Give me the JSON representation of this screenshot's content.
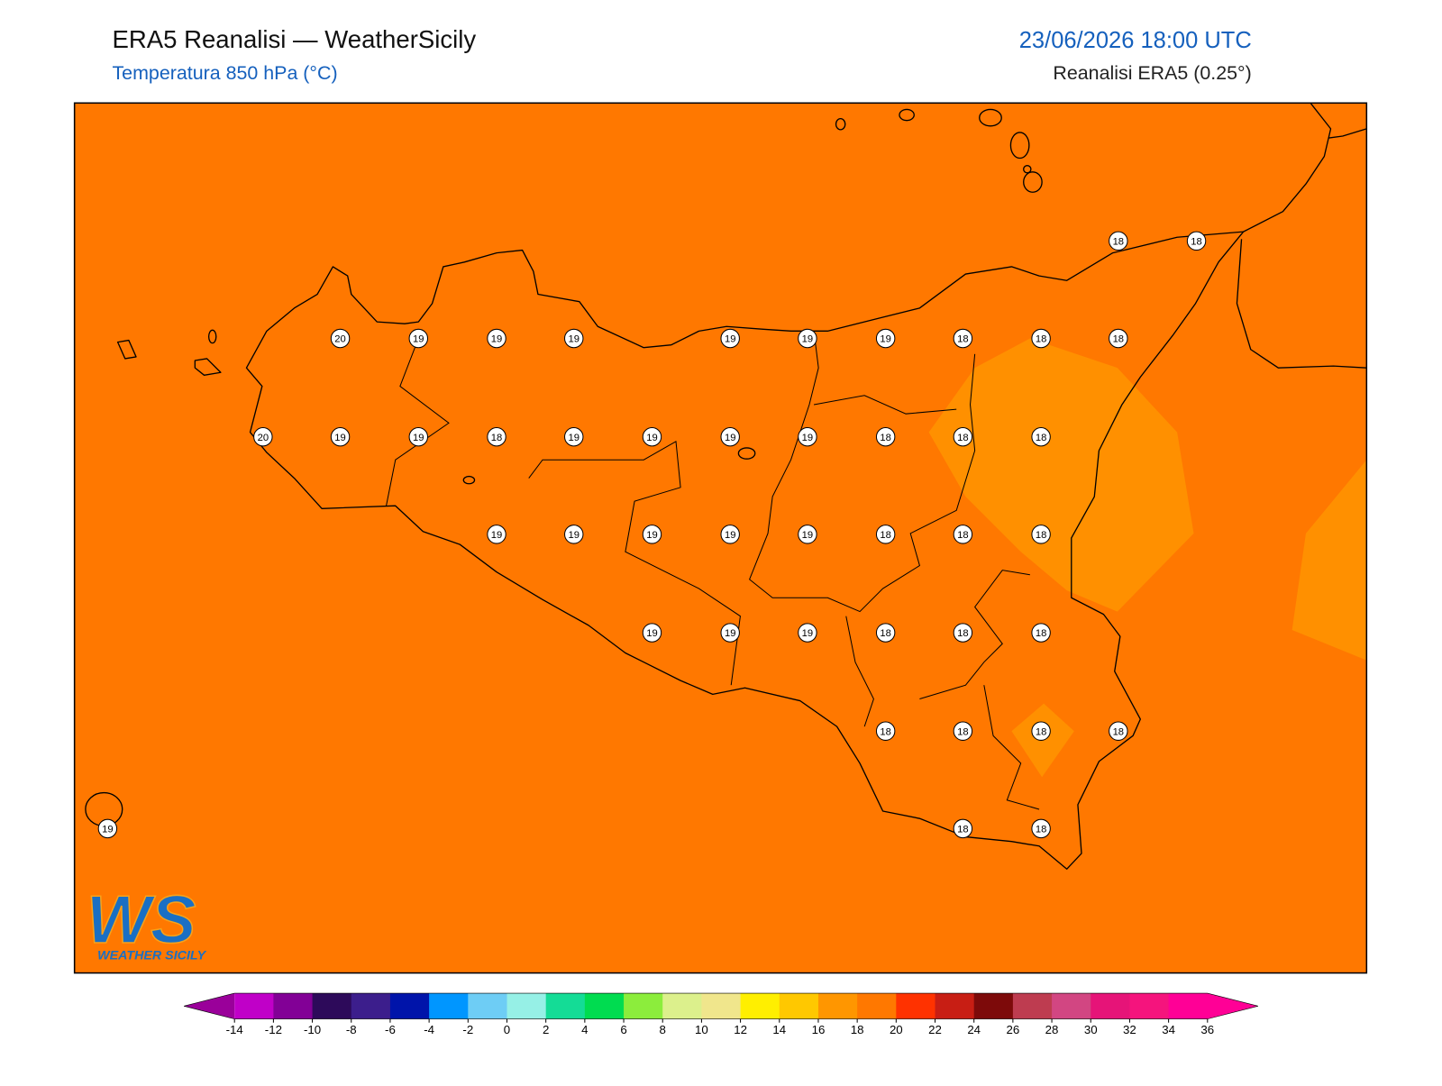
{
  "header": {
    "title": "ERA5 Reanalisi — WeatherSicily",
    "subtitle": "Temperatura 850 hPa (°C)",
    "datetime": "23/06/2026 18:00 UTC",
    "source": "Reanalisi ERA5 (0.25°)"
  },
  "stations": [
    18,
    18,
    20,
    19,
    19,
    19,
    19,
    19,
    19,
    18,
    18,
    18,
    20,
    19,
    19,
    18,
    19,
    19,
    19,
    19,
    18,
    18,
    18,
    19,
    19,
    19,
    19,
    19,
    18,
    18,
    18,
    19,
    19,
    19,
    18,
    18,
    18,
    18,
    18,
    18,
    18,
    19,
    18,
    18
  ],
  "colorbar": {
    "ticks": [
      -14,
      -12,
      -10,
      -8,
      -6,
      -4,
      -2,
      0,
      2,
      4,
      6,
      8,
      10,
      12,
      14,
      16,
      18,
      20,
      22,
      24,
      26,
      28,
      30,
      32,
      34,
      36
    ],
    "under_color": "#9a009a",
    "over_color": "#ff0096",
    "colors": [
      "#c000c8",
      "#820096",
      "#2d0a5a",
      "#3c1e8c",
      "#0014aa",
      "#0096ff",
      "#6ecdf5",
      "#96f0e6",
      "#14dc96",
      "#00dc50",
      "#8ced3c",
      "#dcf08c",
      "#f0e68c",
      "#ffef00",
      "#ffc800",
      "#ff9600",
      "#ff7800",
      "#ff3200",
      "#c81e14",
      "#7d0a0a",
      "#be3c50",
      "#d24682",
      "#e61478",
      "#f5147d",
      "#ff0096"
    ]
  },
  "logo": {
    "mark": "WS",
    "text": "WEATHER SICILY"
  }
}
